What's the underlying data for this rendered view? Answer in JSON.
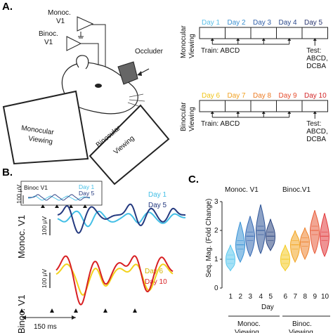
{
  "panel_a": {
    "letter": "A.",
    "mouse_labels": {
      "monoc_v1": "Monoc.\nV1",
      "binoc_v1": "Binoc.\nV1",
      "occluder": "Occluder"
    },
    "screens": {
      "left": "Monocular\nViewing",
      "right": "Binocular\nViewing"
    },
    "schedule_mono": {
      "side_label": "Monocular\nViewing",
      "days": [
        "Day 1",
        "Day 2",
        "Day 3",
        "Day 4",
        "Day 5"
      ],
      "day_colors": [
        "#5bc0e8",
        "#3a8fd0",
        "#2f5ea8",
        "#2c4a8c",
        "#2a3670"
      ],
      "train": "Train: ABCD",
      "test": "Test:\nABCD,\nDCBA"
    },
    "schedule_bino": {
      "side_label": "Binocular\nViewing",
      "days": [
        "Day 6",
        "Day 7",
        "Day 8",
        "Day 9",
        "Day 10"
      ],
      "day_colors": [
        "#f0c419",
        "#f0a020",
        "#ec7a22",
        "#e54d2e",
        "#d22628"
      ],
      "train": "Train: ABCD",
      "test": "Test:\nABCD,\nDCBA"
    }
  },
  "panel_b": {
    "letter": "B.",
    "inset": {
      "title": "Binoc V1",
      "day1": "Day 1",
      "day5": "Day 5",
      "scale": "100 µV"
    },
    "monoc_label": "Monoc. V1",
    "binoc_label": "Binoc. V1",
    "legend_mono": [
      "Day 1",
      "Day 5"
    ],
    "legend_bino": [
      "Day 6",
      "Day 10"
    ],
    "scale_mono": "100 µV",
    "scale_bino": "100 µV",
    "time_scale": "150 ms",
    "colors": {
      "day1": "#43bfe6",
      "day5": "#24397f",
      "day6": "#f2d21c",
      "day10": "#d81f22"
    }
  },
  "panel_c": {
    "letter": "C.",
    "group_titles": [
      "Monoc. V1",
      "Binoc.V1"
    ],
    "brackets": [
      "Monoc.\nViewing",
      "Binoc.\nViewing"
    ],
    "chart_data": {
      "type": "violin",
      "title": "",
      "xlabel": "Day",
      "ylabel": "Seq. Mag. (Fold Change)",
      "ylim": [
        0,
        3
      ],
      "yticks": [
        0,
        1,
        2,
        3
      ],
      "categories": [
        "1",
        "2",
        "3",
        "4",
        "5",
        "6",
        "7",
        "8",
        "9",
        "10"
      ],
      "medians": [
        1.0,
        1.5,
        1.8,
        2.0,
        1.8,
        1.0,
        1.5,
        1.6,
        2.0,
        1.8
      ],
      "mins": [
        0.6,
        0.9,
        1.1,
        1.2,
        1.3,
        0.6,
        0.9,
        1.0,
        1.2,
        1.1
      ],
      "maxs": [
        1.5,
        2.3,
        2.5,
        2.9,
        2.4,
        1.5,
        2.0,
        2.1,
        2.7,
        2.6
      ],
      "colors": [
        "#5bc8ef",
        "#3a93d6",
        "#3569b3",
        "#2f5597",
        "#2b4580",
        "#f4cb22",
        "#f2a624",
        "#ee8330",
        "#e85c3a",
        "#e23a3d"
      ]
    }
  }
}
